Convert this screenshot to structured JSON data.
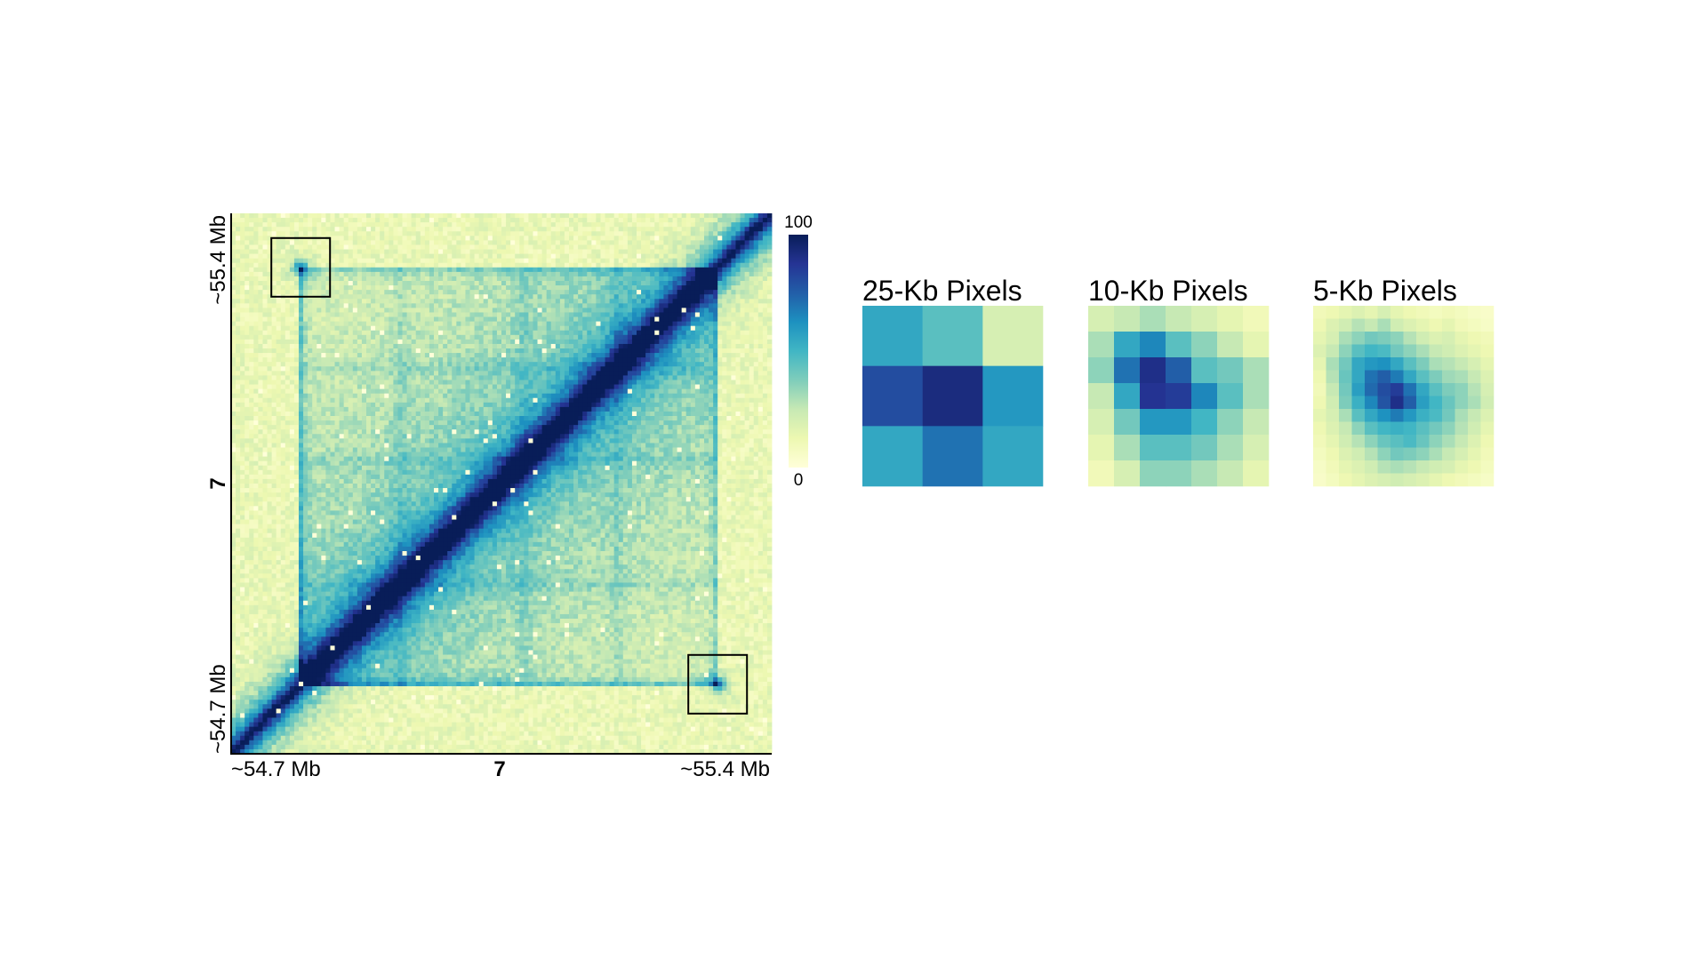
{
  "chart_data": [
    {
      "type": "heatmap",
      "title": "",
      "x_tick_labels": {
        "left": "~54.7 Mb",
        "center": "7",
        "right": "~55.4 Mb"
      },
      "y_tick_labels": {
        "top": "~55.4 Mb",
        "center": "7",
        "bottom": "~54.7 Mb"
      },
      "x_range_mb": [
        54.7,
        55.4
      ],
      "y_range_mb": [
        54.7,
        55.4
      ],
      "bins": 120,
      "diagonal": "bottom-left to top-right",
      "colorbar": {
        "min": 0,
        "max": 100,
        "min_label": "0",
        "max_label": "100",
        "colors": [
          "#ffffd9",
          "#edf8b1",
          "#c7e9b4",
          "#7fcdbb",
          "#41b6c4",
          "#1d91c0",
          "#225ea8",
          "#253494",
          "#081d58"
        ]
      },
      "domain_boundaries_mb": [
        54.79,
        55.33
      ],
      "sub_domain_boundaries_mb": [
        54.92,
        55.08,
        55.2
      ],
      "highlighted_loops": [
        {
          "x_mb": 54.79,
          "y_mb": 55.33
        },
        {
          "x_mb": 55.33,
          "y_mb": 54.79
        }
      ],
      "grid": false
    },
    {
      "type": "heatmap",
      "title": "25-Kb Pixels",
      "values": [
        [
          55,
          45,
          20
        ],
        [
          80,
          92,
          60
        ],
        [
          55,
          70,
          55
        ]
      ]
    },
    {
      "type": "heatmap",
      "title": "10-Kb Pixels",
      "values": [
        [
          20,
          25,
          30,
          25,
          20,
          15,
          10
        ],
        [
          30,
          55,
          65,
          45,
          35,
          25,
          15
        ],
        [
          35,
          70,
          90,
          75,
          45,
          40,
          30
        ],
        [
          25,
          55,
          88,
          85,
          65,
          45,
          30
        ],
        [
          20,
          40,
          60,
          60,
          50,
          35,
          25
        ],
        [
          15,
          30,
          45,
          45,
          40,
          30,
          20
        ],
        [
          10,
          20,
          35,
          35,
          30,
          25,
          15
        ]
      ]
    },
    {
      "type": "heatmap",
      "title": "5-Kb Pixels",
      "values": [
        [
          10,
          12,
          15,
          18,
          15,
          20,
          15,
          12,
          10,
          8,
          10,
          8,
          6,
          5
        ],
        [
          12,
          18,
          22,
          28,
          25,
          30,
          22,
          18,
          15,
          12,
          15,
          10,
          8,
          6
        ],
        [
          15,
          20,
          30,
          35,
          40,
          38,
          35,
          28,
          22,
          18,
          20,
          15,
          12,
          10
        ],
        [
          18,
          25,
          35,
          45,
          50,
          48,
          40,
          35,
          30,
          25,
          22,
          18,
          15,
          12
        ],
        [
          15,
          30,
          40,
          55,
          60,
          62,
          55,
          45,
          38,
          30,
          28,
          25,
          20,
          15
        ],
        [
          12,
          28,
          42,
          55,
          70,
          75,
          68,
          55,
          45,
          38,
          32,
          30,
          25,
          18
        ],
        [
          10,
          25,
          40,
          58,
          72,
          80,
          85,
          70,
          55,
          45,
          38,
          35,
          28,
          20
        ],
        [
          12,
          22,
          38,
          52,
          65,
          78,
          90,
          75,
          58,
          50,
          42,
          35,
          30,
          22
        ],
        [
          15,
          20,
          30,
          45,
          55,
          62,
          68,
          60,
          52,
          48,
          40,
          30,
          25,
          18
        ],
        [
          12,
          18,
          25,
          35,
          45,
          50,
          52,
          50,
          45,
          40,
          35,
          28,
          22,
          15
        ],
        [
          10,
          15,
          22,
          28,
          35,
          42,
          45,
          48,
          42,
          35,
          30,
          25,
          18,
          12
        ],
        [
          8,
          12,
          18,
          22,
          28,
          35,
          40,
          38,
          35,
          30,
          25,
          20,
          15,
          10
        ],
        [
          6,
          10,
          15,
          18,
          22,
          28,
          30,
          28,
          25,
          22,
          20,
          15,
          12,
          8
        ],
        [
          5,
          8,
          12,
          15,
          18,
          20,
          22,
          20,
          18,
          15,
          12,
          10,
          8,
          6
        ]
      ]
    }
  ]
}
